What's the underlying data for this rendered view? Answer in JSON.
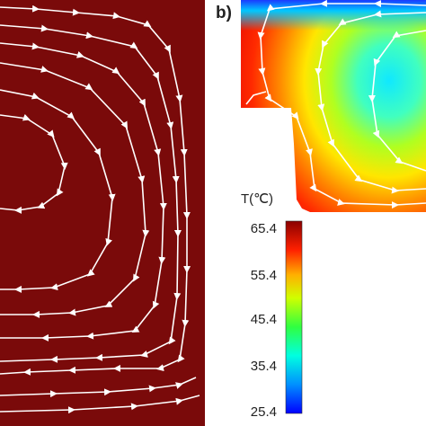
{
  "panel_label": "b)",
  "colorbar": {
    "title": "T(℃)",
    "ticks": [
      "65.4",
      "55.4",
      "45.4",
      "35.4",
      "25.4"
    ],
    "max": 65.4,
    "min": 25.4,
    "colors": [
      "#0000ff",
      "#00b8ff",
      "#00ffd0",
      "#6aff00",
      "#ffff00",
      "#ff9900",
      "#ff1a00",
      "#9a0000"
    ]
  },
  "panel_a": {
    "fill_color": "#7a0a0a",
    "streamline_color": "#ffffff"
  }
}
